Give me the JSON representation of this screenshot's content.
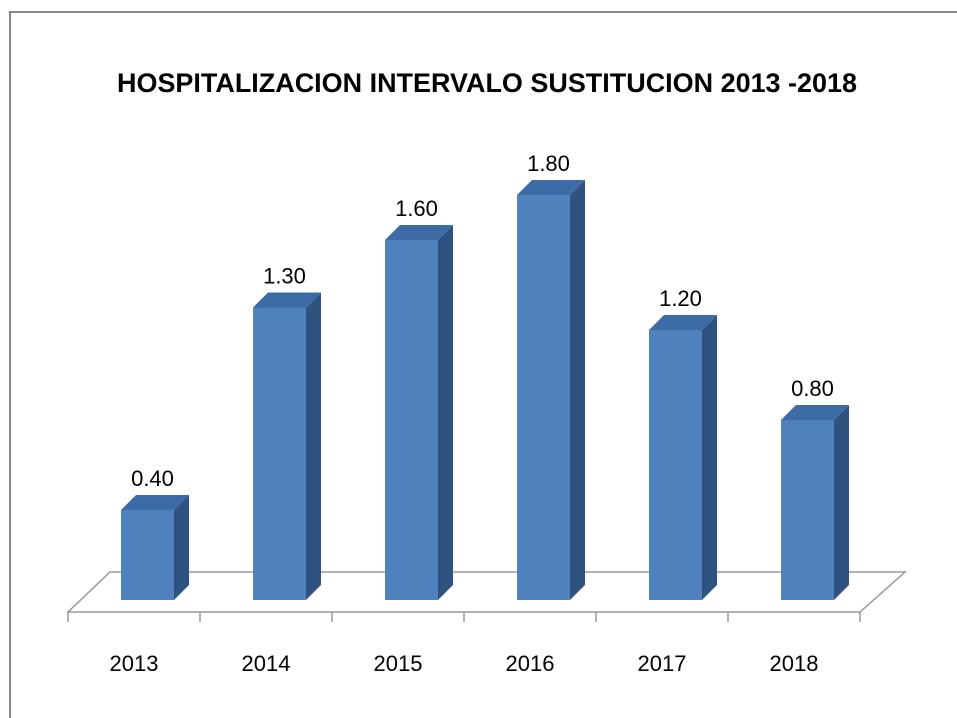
{
  "chart_data": {
    "type": "bar3d",
    "title": "HOSPITALIZACION INTERVALO SUSTITUCION 2013 -2018",
    "categories": [
      "2013",
      "2014",
      "2015",
      "2016",
      "2017",
      "2018"
    ],
    "values": [
      0.4,
      1.3,
      1.6,
      1.8,
      1.2,
      0.8
    ],
    "value_labels": [
      "0.40",
      "1.30",
      "1.60",
      "1.80",
      "1.20",
      "0.80"
    ],
    "color": "#4f81bd"
  }
}
